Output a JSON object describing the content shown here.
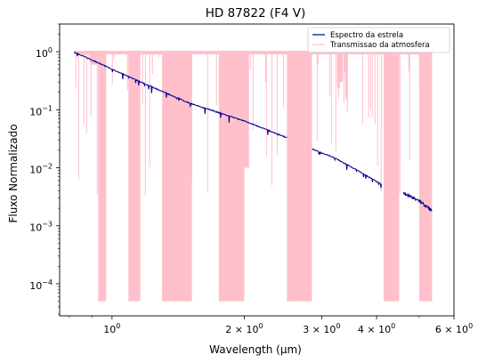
{
  "chart_data": {
    "type": "line",
    "title": "HD 87822 (F4 V)",
    "xlabel": "Wavelength (μm)",
    "ylabel": "Fluxo Normalizado",
    "xscale": "log",
    "yscale": "log",
    "xlim": [
      0.76,
      6.0
    ],
    "ylim": [
      2.8e-05,
      3.0
    ],
    "grid": false,
    "legend_position": "top-right",
    "x_ticks": [
      {
        "value": 1.0,
        "base": "10",
        "exp": "0"
      },
      {
        "value": 2.0,
        "base": "2 × 10",
        "exp": "0"
      },
      {
        "value": 3.0,
        "base": "3 × 10",
        "exp": "0"
      },
      {
        "value": 4.0,
        "base": "4 × 10",
        "exp": "0"
      },
      {
        "value": 6.0,
        "base": "6 × 10",
        "exp": "0"
      }
    ],
    "y_ticks": [
      {
        "value": 1.0,
        "base": "10",
        "exp": "0"
      },
      {
        "value": 0.1,
        "base": "10",
        "exp": "−1"
      },
      {
        "value": 0.01,
        "base": "10",
        "exp": "−2"
      },
      {
        "value": 0.001,
        "base": "10",
        "exp": "−3"
      },
      {
        "value": 0.0001,
        "base": "10",
        "exp": "−4"
      }
    ],
    "series": [
      {
        "name": "Espectro da estrela",
        "color": "#00008b",
        "segments": [
          {
            "x": [
              0.82,
              0.9,
              1.0,
              1.2,
              1.5,
              2.0,
              2.5
            ],
            "y": [
              0.98,
              0.72,
              0.5,
              0.27,
              0.13,
              0.064,
              0.033
            ]
          },
          {
            "x": [
              2.85,
              3.2,
              3.6,
              4.1
            ],
            "y": [
              0.021,
              0.015,
              0.0092,
              0.0052
            ]
          },
          {
            "x": [
              4.6,
              5.0,
              5.35
            ],
            "y": [
              0.0037,
              0.0027,
              0.0018
            ]
          }
        ]
      },
      {
        "name": "Transmissao da atmosfera",
        "color": "#ffc0cb",
        "bands": [
          {
            "x0": 0.89,
            "x1": 0.93,
            "min": 0.6
          },
          {
            "x0": 0.93,
            "x1": 0.97,
            "min": 5e-05
          },
          {
            "x0": 1.09,
            "x1": 1.16,
            "min": 5e-05
          },
          {
            "x0": 1.3,
            "x1": 1.52,
            "min": 5e-05
          },
          {
            "x0": 1.75,
            "x1": 2.0,
            "min": 5e-05
          },
          {
            "x0": 2.0,
            "x1": 2.05,
            "min": 0.01
          },
          {
            "x0": 2.5,
            "x1": 2.85,
            "min": 5e-05
          },
          {
            "x0": 3.25,
            "x1": 3.35,
            "min": 0.3
          },
          {
            "x0": 4.15,
            "x1": 4.5,
            "min": 5e-05
          },
          {
            "x0": 5.0,
            "x1": 5.35,
            "min": 5e-05
          }
        ],
        "top": 1.0,
        "x_end": 5.35
      }
    ]
  }
}
